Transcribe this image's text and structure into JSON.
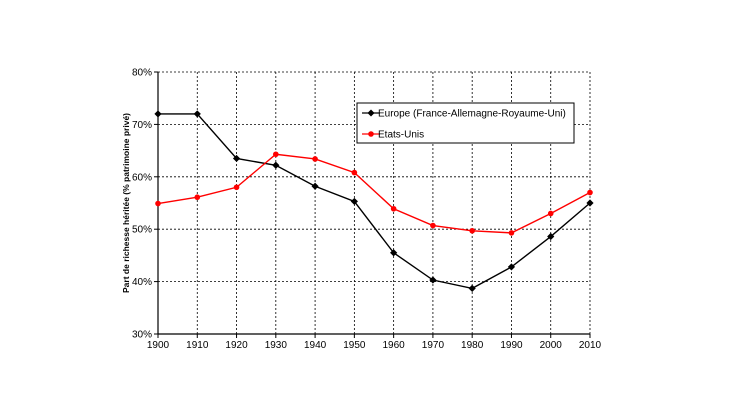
{
  "chart_data": {
    "type": "line",
    "title": "",
    "xlabel": "",
    "ylabel": "Part de richesse héritée (% patrimoine privé)",
    "x": [
      1900,
      1910,
      1920,
      1930,
      1940,
      1950,
      1960,
      1970,
      1980,
      1990,
      2000,
      2010
    ],
    "ylim": [
      30,
      80
    ],
    "yticks": [
      "30%",
      "40%",
      "50%",
      "60%",
      "70%",
      "80%"
    ],
    "grid": "dashed-both",
    "legend_position": "top-right",
    "series": [
      {
        "name": "Europe (France-Allemagne-Royaume-Uni)",
        "color": "#000000",
        "marker": "diamond",
        "values": [
          72,
          72,
          63.5,
          62.2,
          58.2,
          55.3,
          45.5,
          40.3,
          38.7,
          42.8,
          48.6,
          55
        ]
      },
      {
        "name": "Etats-Unis",
        "color": "#ff0000",
        "marker": "circle",
        "values": [
          54.9,
          56.1,
          58,
          64.3,
          63.4,
          60.8,
          53.9,
          50.7,
          49.7,
          49.3,
          53,
          57
        ]
      }
    ]
  }
}
